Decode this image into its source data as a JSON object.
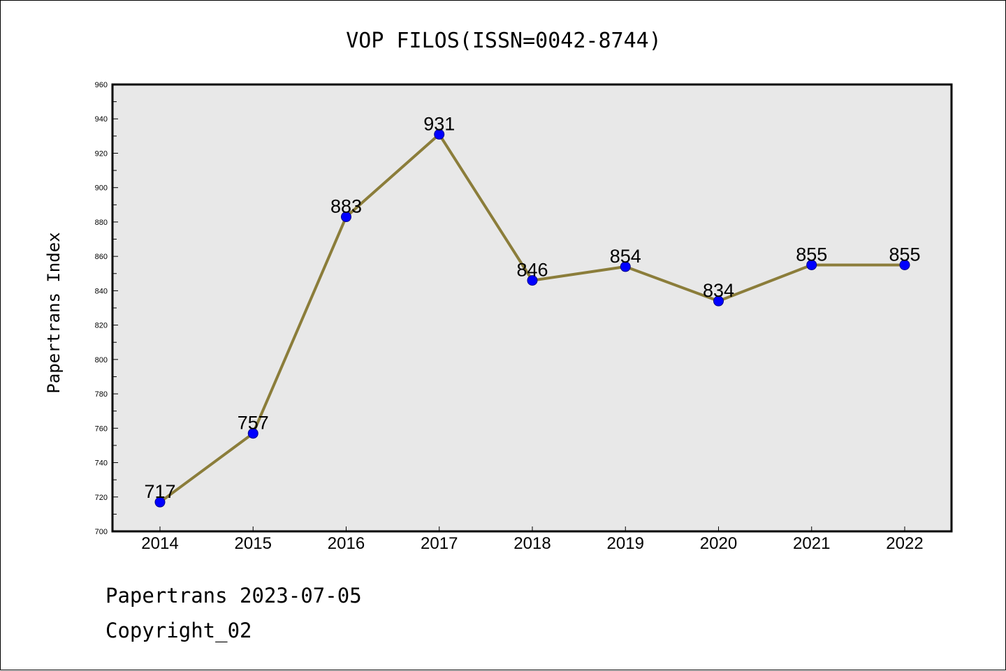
{
  "chart_data": {
    "type": "line",
    "title": "VOP FILOS(ISSN=0042-8744)",
    "xlabel": "",
    "ylabel": "Papertrans Index",
    "categories": [
      "2014",
      "2015",
      "2016",
      "2017",
      "2018",
      "2019",
      "2020",
      "2021",
      "2022"
    ],
    "series": [
      {
        "values": [
          717,
          757,
          883,
          931,
          846,
          854,
          834,
          855,
          855
        ]
      }
    ],
    "data_labels": [
      "717",
      "757",
      "883",
      "931",
      "846",
      "854",
      "834",
      "855",
      "855"
    ],
    "ylim": [
      700,
      960
    ],
    "yticks": [
      700,
      720,
      740,
      760,
      780,
      800,
      820,
      840,
      860,
      880,
      900,
      920,
      940,
      960
    ],
    "grid": false,
    "legend": "none",
    "colors": {
      "line": "#8B7D3A",
      "marker": "#0000FF",
      "plot_background": "#E8E8E8"
    }
  },
  "footer": {
    "line1": "Papertrans 2023-07-05",
    "line2": "Copyright_02"
  }
}
